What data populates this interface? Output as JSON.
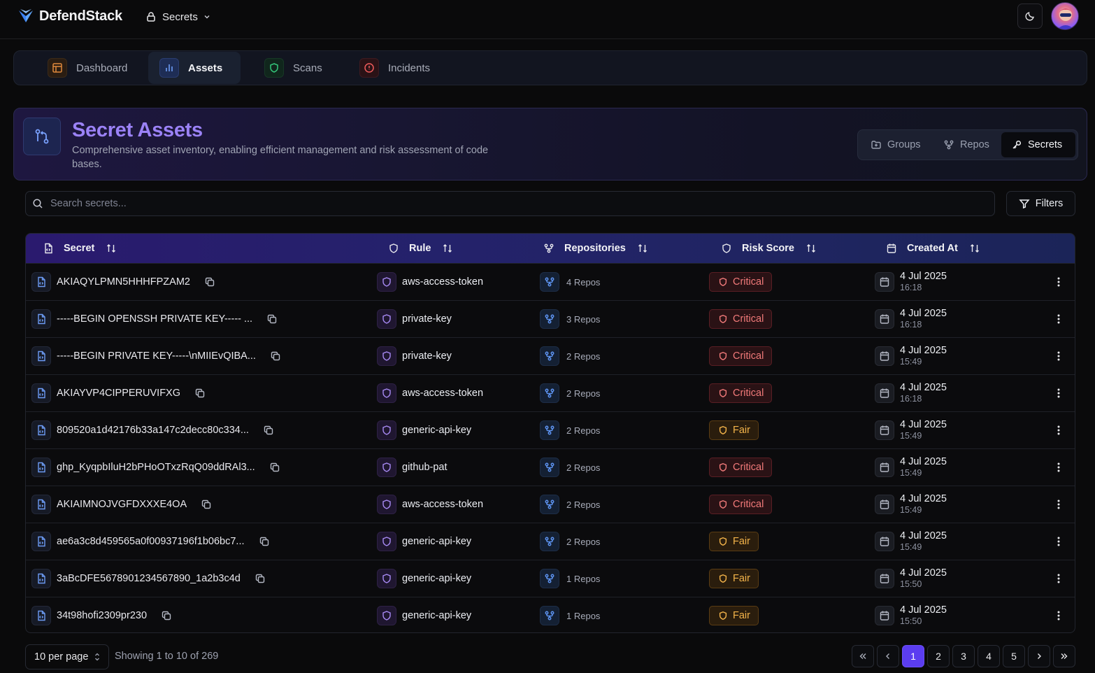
{
  "app": {
    "name": "DefendStack",
    "context": "Secrets"
  },
  "nav": {
    "tabs": [
      {
        "label": "Dashboard",
        "icon": "layout-icon",
        "active": false
      },
      {
        "label": "Assets",
        "icon": "bar-chart-icon",
        "active": true
      },
      {
        "label": "Scans",
        "icon": "shield-icon",
        "active": false
      },
      {
        "label": "Incidents",
        "icon": "alert-circle-icon",
        "active": false
      }
    ]
  },
  "hero": {
    "title": "Secret Assets",
    "subtitle": "Comprehensive asset inventory, enabling efficient management and risk assessment of code bases.",
    "segments": [
      {
        "label": "Groups",
        "icon": "folder-icon",
        "active": false
      },
      {
        "label": "Repos",
        "icon": "git-branch-icon",
        "active": false
      },
      {
        "label": "Secrets",
        "icon": "key-icon",
        "active": true
      }
    ]
  },
  "search": {
    "placeholder": "Search secrets...",
    "value": ""
  },
  "filters_label": "Filters",
  "table": {
    "columns": [
      "Secret",
      "Rule",
      "Repositories",
      "Risk Score",
      "Created At"
    ],
    "rows": [
      {
        "secret": "AKIAQYLPMN5HHHFPZAM2",
        "rule": "aws-access-token",
        "repos": "4 Repos",
        "risk": "Critical",
        "date": "4 Jul 2025",
        "time": "16:18"
      },
      {
        "secret": "-----BEGIN OPENSSH PRIVATE KEY----- ...",
        "rule": "private-key",
        "repos": "3 Repos",
        "risk": "Critical",
        "date": "4 Jul 2025",
        "time": "16:18"
      },
      {
        "secret": "-----BEGIN PRIVATE KEY-----\\nMIIEvQIBA...",
        "rule": "private-key",
        "repos": "2 Repos",
        "risk": "Critical",
        "date": "4 Jul 2025",
        "time": "15:49"
      },
      {
        "secret": "AKIAYVP4CIPPERUVIFXG",
        "rule": "aws-access-token",
        "repos": "2 Repos",
        "risk": "Critical",
        "date": "4 Jul 2025",
        "time": "16:18"
      },
      {
        "secret": "809520a1d42176b33a147c2decc80c334...",
        "rule": "generic-api-key",
        "repos": "2 Repos",
        "risk": "Fair",
        "date": "4 Jul 2025",
        "time": "15:49"
      },
      {
        "secret": "ghp_KyqpbIluH2bPHoOTxzRqQ09ddRAl3...",
        "rule": "github-pat",
        "repos": "2 Repos",
        "risk": "Critical",
        "date": "4 Jul 2025",
        "time": "15:49"
      },
      {
        "secret": "AKIAIMNOJVGFDXXXE4OA",
        "rule": "aws-access-token",
        "repos": "2 Repos",
        "risk": "Critical",
        "date": "4 Jul 2025",
        "time": "15:49"
      },
      {
        "secret": "ae6a3c8d459565a0f00937196f1b06bc7...",
        "rule": "generic-api-key",
        "repos": "2 Repos",
        "risk": "Fair",
        "date": "4 Jul 2025",
        "time": "15:49"
      },
      {
        "secret": "3aBcDFE5678901234567890_1a2b3c4d",
        "rule": "generic-api-key",
        "repos": "1 Repos",
        "risk": "Fair",
        "date": "4 Jul 2025",
        "time": "15:50"
      },
      {
        "secret": "34t98hofi2309pr230",
        "rule": "generic-api-key",
        "repos": "1 Repos",
        "risk": "Fair",
        "date": "4 Jul 2025",
        "time": "15:50"
      }
    ]
  },
  "footer": {
    "per_page": "10 per page",
    "showing": "Showing 1 to 10 of 269",
    "pages": [
      "1",
      "2",
      "3",
      "4",
      "5"
    ],
    "current_page": "1"
  },
  "colors": {
    "accent": "#5b3df0",
    "title": "#9b82f7",
    "critical": "#f27a7a",
    "fair": "#f4b44a"
  }
}
